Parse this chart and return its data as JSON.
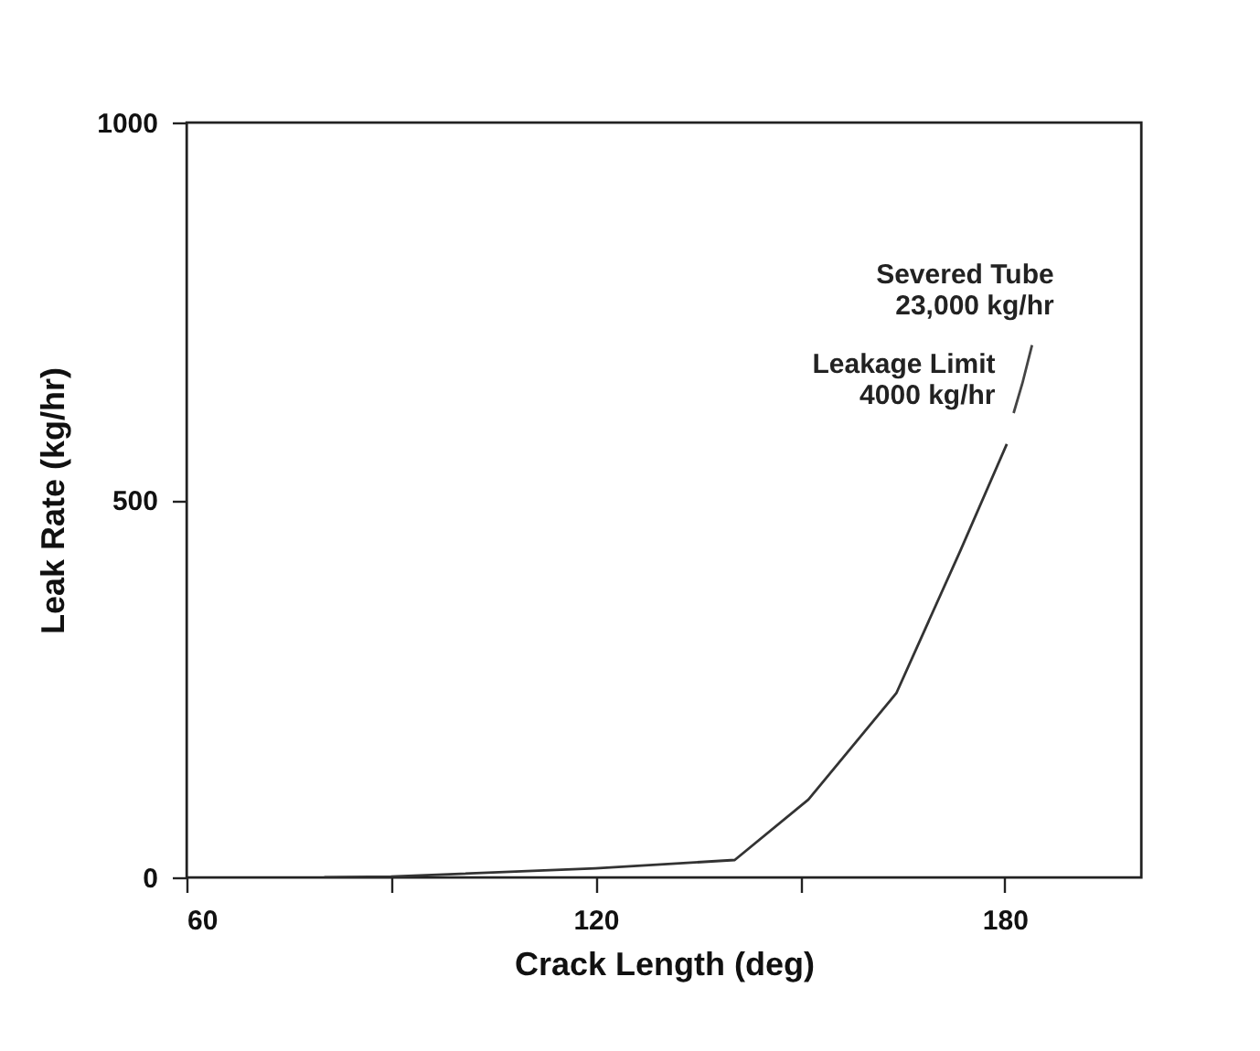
{
  "chart_data": {
    "type": "line",
    "xlabel": "Crack Length (deg)",
    "ylabel": "Leak Rate (kg/hr)",
    "xlim": [
      60,
      200
    ],
    "xticks": [
      60,
      {
        "value": 90,
        "label": null
      },
      120,
      {
        "value": 150,
        "label": null
      },
      180
    ],
    "ylim": [
      0,
      1000
    ],
    "yticks": [
      0,
      500,
      1000
    ],
    "grid": false,
    "series": [
      {
        "color": "#333333",
        "x": [
          80.2,
          90,
          120,
          140.4,
          151.2,
          164.1,
          173.5,
          180.3
        ],
        "values": [
          0,
          1,
          12,
          23,
          103,
          244,
          433,
          574
        ]
      },
      {
        "color": "#444444",
        "x": [
          181.3,
          182.6,
          184
        ],
        "values": [
          615,
          655,
          705
        ]
      }
    ],
    "annotations": [
      {
        "text": "Leakage Limit\n4000 kg/hr",
        "x": 181.3,
        "y": 615
      },
      {
        "text": "Severed Tube\n23,000 kg/hr",
        "x": 184,
        "y": 705
      }
    ]
  }
}
